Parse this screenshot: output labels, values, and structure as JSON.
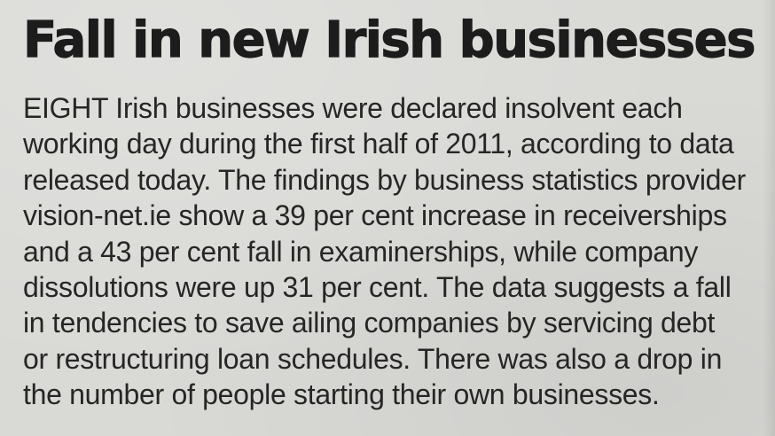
{
  "article": {
    "headline": "Fall in new Irish businesses",
    "body_lines": [
      "EIGHT Irish businesses were declared insolvent each",
      "working day during the first half of 2011, according to data",
      "released today. The findings by business statistics provider",
      "vision-net.ie show a 39 per cent increase in receiverships",
      "and a 43 per cent fall in examinerships, while company",
      "dissolutions were up 31 per cent. The data suggests a fall",
      "in tendencies to save ailing companies by servicing debt",
      "or restructuring loan schedules. There was also a drop in",
      "the number of people starting their own businesses."
    ]
  }
}
